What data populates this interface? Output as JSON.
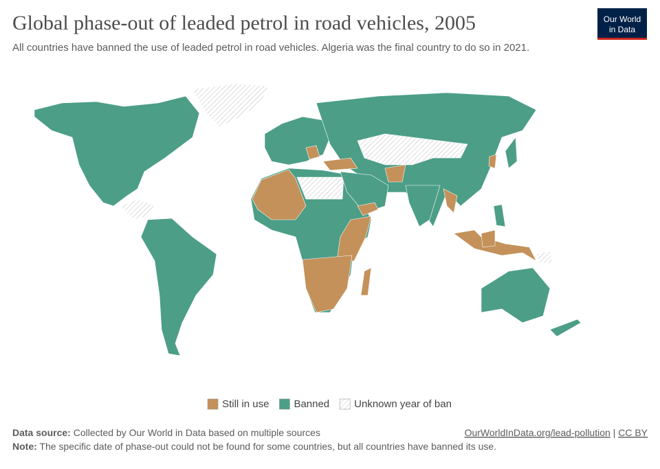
{
  "header": {
    "title": "Global phase-out of leaded petrol in road vehicles, 2005",
    "subtitle": "All countries have banned the use of leaded petrol in road vehicles. Algeria was the final country to do so in 2021.",
    "logo": [
      "Our World",
      "in Data"
    ]
  },
  "legend": [
    {
      "label": "Still in use",
      "color": "#c4915a"
    },
    {
      "label": "Banned",
      "color": "#4c9e87"
    },
    {
      "label": "Unknown year of ban"
    }
  ],
  "footer": {
    "source_label": "Data source:",
    "source": "Collected by Our World in Data based on multiple sources",
    "url": "OurWorldInData.org/lead-pollution",
    "separator": "|",
    "license": "CC BY",
    "note_label": "Note:",
    "note": "The specific date of phase-out could not be found for some countries, but all countries have banned its use."
  }
}
